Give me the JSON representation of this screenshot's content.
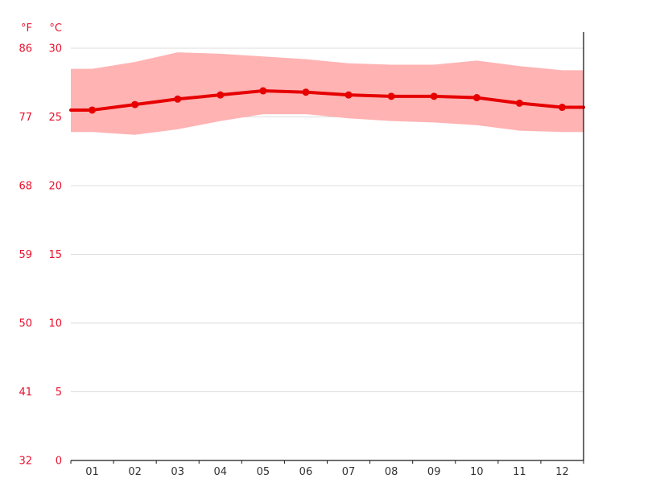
{
  "chart_data": {
    "type": "line",
    "title": "",
    "categories": [
      "01",
      "02",
      "03",
      "04",
      "05",
      "06",
      "07",
      "08",
      "09",
      "10",
      "11",
      "12"
    ],
    "series": [
      {
        "name": "average_temperature_c",
        "values": [
          25.5,
          25.9,
          26.3,
          26.6,
          26.9,
          26.8,
          26.6,
          26.5,
          26.5,
          26.4,
          26.0,
          25.7
        ]
      },
      {
        "name": "band_max_temperature_c",
        "values": [
          28.5,
          29.0,
          29.7,
          29.6,
          29.4,
          29.2,
          28.9,
          28.8,
          28.8,
          29.1,
          28.7,
          28.4
        ]
      },
      {
        "name": "band_min_temperature_c",
        "values": [
          23.9,
          23.7,
          24.1,
          24.7,
          25.2,
          25.2,
          24.9,
          24.7,
          24.6,
          24.4,
          24.0,
          23.9
        ]
      }
    ],
    "axes": {
      "left_unit_label": "°F",
      "right_unit_label": "°C",
      "c_ticks": [
        0,
        5,
        10,
        15,
        20,
        25,
        30
      ],
      "f_ticks": [
        32,
        41,
        50,
        59,
        68,
        77,
        86
      ],
      "ylim_c": [
        0,
        31.2
      ],
      "grid": true,
      "legend_position": "none"
    },
    "colors": {
      "band_fill": "#ffb3b3",
      "mean_line": "#e60000",
      "marker": "#e60000",
      "temp_label_text": "#e8112d",
      "month_label_text": "#333333",
      "gridline": "#dddddd",
      "axis_line": "#1a1a1a"
    }
  }
}
